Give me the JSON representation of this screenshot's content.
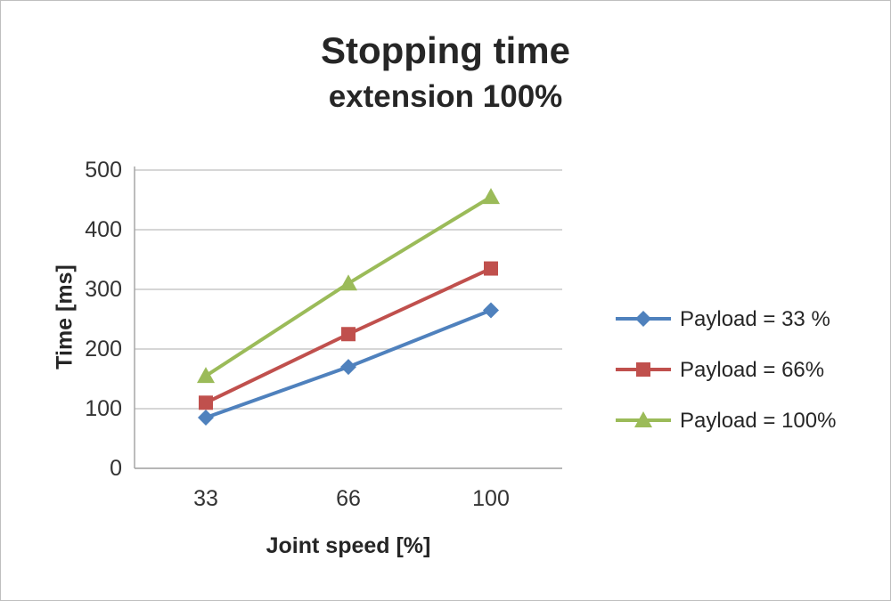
{
  "chart_data": {
    "type": "line",
    "title": "Stopping time",
    "subtitle": "extension 100%",
    "xlabel": "Joint speed [%]",
    "ylabel": "Time [ms]",
    "categories": [
      "33",
      "66",
      "100"
    ],
    "series": [
      {
        "name": "Payload = 33 %",
        "marker": "diamond",
        "color": "#4f81bd",
        "values": [
          85,
          170,
          265
        ]
      },
      {
        "name": "Payload =  66%",
        "marker": "square",
        "color": "#c0504d",
        "values": [
          110,
          225,
          335
        ]
      },
      {
        "name": "Payload =  100%",
        "marker": "triangle",
        "color": "#9bbb59",
        "values": [
          155,
          310,
          455
        ]
      }
    ],
    "ylim": [
      0,
      500
    ],
    "ytick_step": 100,
    "grid": true,
    "legend_position": "right",
    "colors": {
      "gridline": "#c9c9c9",
      "axis_line": "#a6a6a6",
      "text": "#262626"
    }
  }
}
